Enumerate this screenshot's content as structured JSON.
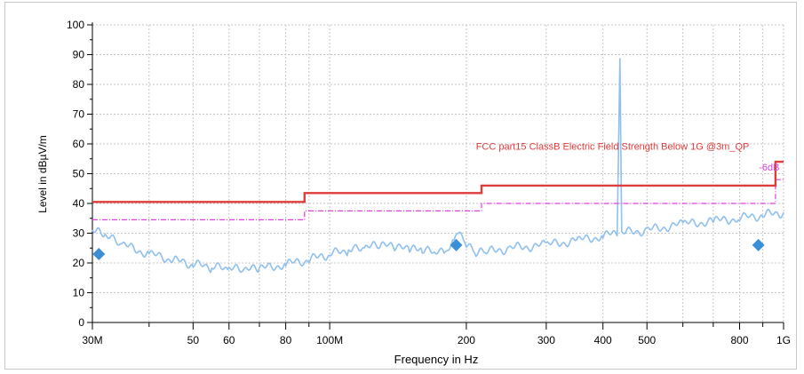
{
  "chart_data": {
    "type": "line",
    "title": "",
    "xlabel": "Frequency in Hz",
    "ylabel": "Level in dBµV/m",
    "xscale": "log",
    "xlim": [
      30000000,
      1000000000
    ],
    "ylim": [
      0,
      100
    ],
    "grid": true,
    "x_tick_labels": [
      {
        "value": 30000000,
        "label": "30M"
      },
      {
        "value": 50000000,
        "label": "50"
      },
      {
        "value": 60000000,
        "label": "60"
      },
      {
        "value": 80000000,
        "label": "80"
      },
      {
        "value": 100000000,
        "label": "100M"
      },
      {
        "value": 200000000,
        "label": "200"
      },
      {
        "value": 300000000,
        "label": "300"
      },
      {
        "value": 400000000,
        "label": "400"
      },
      {
        "value": 500000000,
        "label": "500"
      },
      {
        "value": 800000000,
        "label": "800"
      },
      {
        "value": 1000000000,
        "label": "1G"
      }
    ],
    "y_ticks": [
      0,
      10,
      20,
      30,
      40,
      50,
      60,
      70,
      80,
      90,
      100
    ],
    "limit_line": {
      "color": "#e03c3c",
      "points": [
        [
          30000000,
          40.5
        ],
        [
          88000000,
          40.5
        ],
        [
          88000000,
          43.5
        ],
        [
          216000000,
          43.5
        ],
        [
          216000000,
          46
        ],
        [
          960000000,
          46
        ],
        [
          960000000,
          54
        ],
        [
          1000000000,
          54
        ]
      ]
    },
    "margin_line": {
      "color": "#e040e0",
      "points": [
        [
          30000000,
          34.5
        ],
        [
          88000000,
          34.5
        ],
        [
          88000000,
          37.5
        ],
        [
          216000000,
          37.5
        ],
        [
          216000000,
          40
        ],
        [
          960000000,
          40
        ],
        [
          960000000,
          48
        ],
        [
          1000000000,
          48
        ]
      ]
    },
    "spectrum": {
      "color": "#8fc0ee",
      "points": [
        [
          30000000,
          31
        ],
        [
          32000000,
          29
        ],
        [
          35000000,
          26
        ],
        [
          40000000,
          23
        ],
        [
          45000000,
          21
        ],
        [
          50000000,
          19.5
        ],
        [
          55000000,
          18.5
        ],
        [
          60000000,
          18
        ],
        [
          65000000,
          17.5
        ],
        [
          70000000,
          18
        ],
        [
          80000000,
          19.5
        ],
        [
          90000000,
          21
        ],
        [
          100000000,
          23
        ],
        [
          110000000,
          24
        ],
        [
          120000000,
          25
        ],
        [
          130000000,
          26
        ],
        [
          140000000,
          25
        ],
        [
          150000000,
          24.5
        ],
        [
          160000000,
          24
        ],
        [
          170000000,
          23.5
        ],
        [
          180000000,
          23
        ],
        [
          188000000,
          27
        ],
        [
          192000000,
          30
        ],
        [
          200000000,
          26
        ],
        [
          210000000,
          23
        ],
        [
          220000000,
          23.5
        ],
        [
          250000000,
          25
        ],
        [
          300000000,
          26
        ],
        [
          350000000,
          27.5
        ],
        [
          400000000,
          29
        ],
        [
          430000000,
          30
        ],
        [
          436000000,
          89
        ],
        [
          440000000,
          30
        ],
        [
          500000000,
          31
        ],
        [
          600000000,
          33
        ],
        [
          700000000,
          34
        ],
        [
          800000000,
          35
        ],
        [
          900000000,
          36
        ],
        [
          1000000000,
          37
        ]
      ]
    },
    "markers": {
      "color": "#3a8fd6",
      "points": [
        [
          31000000,
          23
        ],
        [
          190000000,
          26
        ],
        [
          880000000,
          26
        ]
      ]
    },
    "annotations": [
      {
        "text": "FCC part15 ClassB Electric Field Strength Below 1G @3m_QP",
        "color": "#e03c3c",
        "at": [
          420000000,
          58
        ]
      },
      {
        "text": "-6dB",
        "color": "#e040e0",
        "at": [
          930000000,
          51
        ]
      }
    ]
  }
}
